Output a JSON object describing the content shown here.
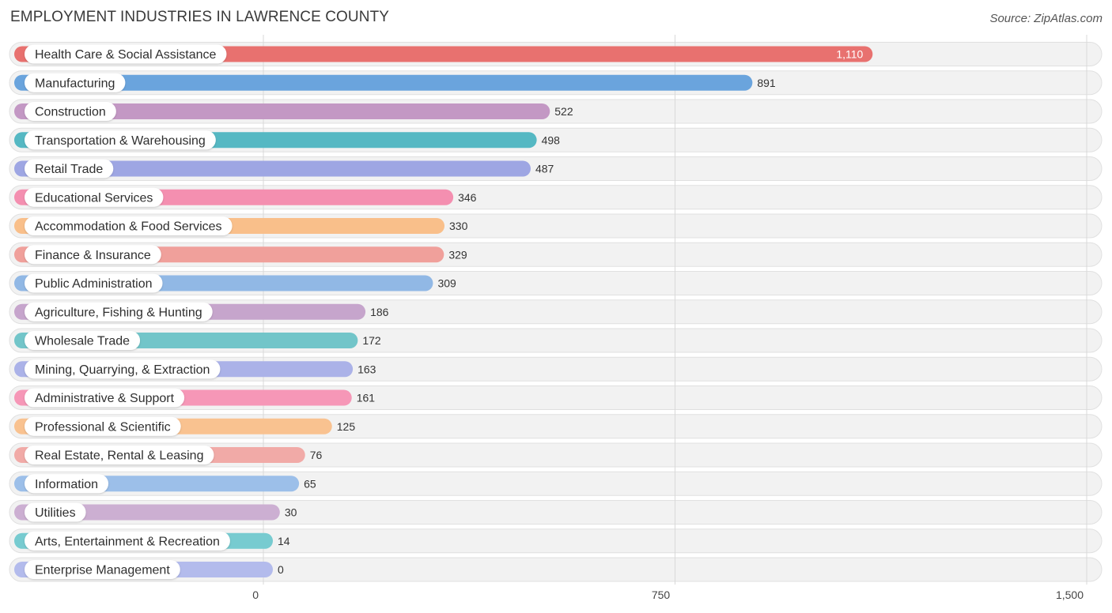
{
  "title": "EMPLOYMENT INDUSTRIES IN LAWRENCE COUNTY",
  "source": "Source: ZipAtlas.com",
  "chart_data": {
    "type": "bar",
    "orientation": "horizontal",
    "title": "EMPLOYMENT INDUSTRIES IN LAWRENCE COUNTY",
    "xlim": [
      0,
      1500
    ],
    "xticks": [
      0,
      750,
      1500
    ],
    "xtick_labels": [
      "0",
      "750",
      "1,500"
    ],
    "grid": true,
    "categories": [
      "Health Care & Social Assistance",
      "Manufacturing",
      "Construction",
      "Transportation & Warehousing",
      "Retail Trade",
      "Educational Services",
      "Accommodation & Food Services",
      "Finance & Insurance",
      "Public Administration",
      "Agriculture, Fishing & Hunting",
      "Wholesale Trade",
      "Mining, Quarrying, & Extraction",
      "Administrative & Support",
      "Professional & Scientific",
      "Real Estate, Rental & Leasing",
      "Information",
      "Utilities",
      "Arts, Entertainment & Recreation",
      "Enterprise Management"
    ],
    "values": [
      1110,
      891,
      522,
      498,
      487,
      346,
      330,
      329,
      309,
      186,
      172,
      163,
      161,
      125,
      76,
      65,
      30,
      14,
      0
    ],
    "value_labels": [
      "1,110",
      "891",
      "522",
      "498",
      "487",
      "346",
      "330",
      "329",
      "309",
      "186",
      "172",
      "163",
      "161",
      "125",
      "76",
      "65",
      "30",
      "14",
      "0"
    ],
    "colors": [
      "#e8716f",
      "#6aa4dd",
      "#c398c4",
      "#55b8c3",
      "#9ea6e3",
      "#f48fb0",
      "#f9bf8a",
      "#f0a09b",
      "#91b8e5",
      "#c6a5cc",
      "#72c5c9",
      "#abb2e8",
      "#f697b7",
      "#f9c290",
      "#f1aaa7",
      "#9cbfe9",
      "#ccafd2",
      "#77cbd0",
      "#b3bbec"
    ]
  }
}
